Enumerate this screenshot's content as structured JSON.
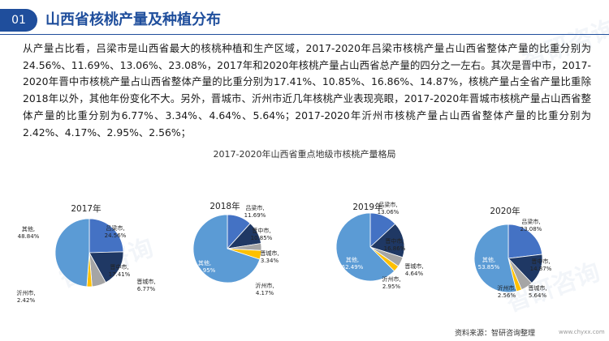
{
  "header": {
    "number": "01",
    "title": "山西省核桃产量及种植分布"
  },
  "paragraph": "从产量占比看，吕梁市是山西省最大的核桃种植和生产区域，2017-2020年吕梁市核桃产量占山西省整体产量的比重分别为24.56%、11.69%、13.06%、23.08%，2017年和2020年核桃产量占山西省总产量的四分之一左右。其次是晋中市，2017-2020年晋中市核桃产量占山西省整体产量的比重分别为17.41%、10.85%、16.86%、14.87%，核桃产量占全省产量比重除2018年以外，其他年份变化不大。另外，晋城市、沂州市近几年核桃产业表现亮眼，2017-2020年晋城市核桃产量占山西省整体产量的比重分别为6.77%、3.34%、4.64%、5.64%；2017-2020年沂州市核桃产量占山西省整体产量的比重分别为2.42%、4.17%、2.95%、2.56%；",
  "footer": {
    "source": "资料来源：智研咨询整理",
    "url": "www.chyxx.com"
  },
  "watermark": "智研咨询",
  "colors": {
    "吕梁市": "#4472c4",
    "晋中市": "#1f3864",
    "晋城市": "#a5a5a5",
    "沂州市": "#ffc000",
    "其他": "#5b9bd5"
  },
  "chart_data": {
    "type": "pie",
    "title": "2017-2020年山西省重点地级市核桃产量格局",
    "pies": [
      {
        "year": "2017年",
        "slices": [
          {
            "name": "吕梁市",
            "label": "吕梁市,",
            "value": "24.56%"
          },
          {
            "name": "晋中市",
            "label": "晋中市,",
            "value": "17.41%"
          },
          {
            "name": "晋城市",
            "label": "晋城市,",
            "value": "6.77%"
          },
          {
            "name": "沂州市",
            "label": "沂州市,",
            "value": "2.42%"
          },
          {
            "name": "其他",
            "label": "其他,",
            "value": "48.84%"
          }
        ]
      },
      {
        "year": "2018年",
        "slices": [
          {
            "name": "吕梁市",
            "label": "吕梁市,",
            "value": "11.69%"
          },
          {
            "name": "晋中市",
            "label": "晋中市,",
            "value": "10.85%"
          },
          {
            "name": "晋城市",
            "label": "晋城市,",
            "value": "3.34%"
          },
          {
            "name": "沂州市",
            "label": "沂州市,",
            "value": "4.17%"
          },
          {
            "name": "其他",
            "label": "其他,",
            "value": "69.95%"
          }
        ]
      },
      {
        "year": "2019年",
        "slices": [
          {
            "name": "吕梁市",
            "label": "吕梁市,",
            "value": "13.06%"
          },
          {
            "name": "晋中市",
            "label": "晋中市,",
            "value": "16.86%"
          },
          {
            "name": "晋城市",
            "label": "晋城市,",
            "value": "4.64%"
          },
          {
            "name": "沂州市",
            "label": "沂州市,",
            "value": "2.95%"
          },
          {
            "name": "其他",
            "label": "其他,",
            "value": "62.49%"
          }
        ]
      },
      {
        "year": "2020年",
        "slices": [
          {
            "name": "吕梁市",
            "label": "吕梁市,",
            "value": "23.08%"
          },
          {
            "name": "晋中市",
            "label": "晋中市,",
            "value": "14.87%"
          },
          {
            "name": "晋城市",
            "label": "晋城市,",
            "value": "5.64%"
          },
          {
            "name": "沂州市",
            "label": "沂州市,",
            "value": "2.56%"
          },
          {
            "name": "其他",
            "label": "其他,",
            "value": "53.85%"
          }
        ]
      }
    ]
  }
}
